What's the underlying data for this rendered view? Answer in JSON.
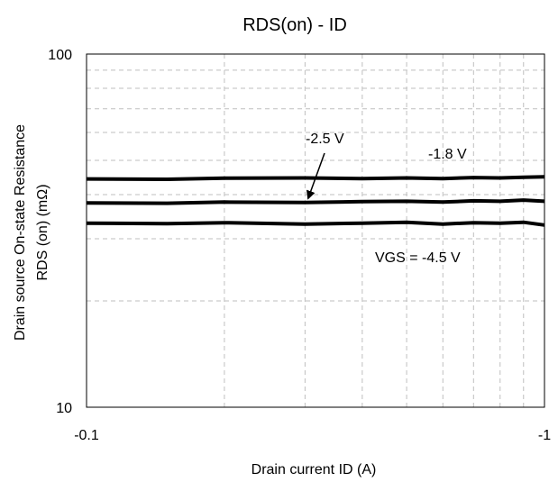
{
  "chart_data": {
    "type": "line",
    "title": "RDS(on) - ID",
    "xlabel": "Drain current ID (A)",
    "ylabel_lines": [
      "Drain source On-state Resistance",
      "RDS (on) (mΩ)"
    ],
    "x_scale": "log",
    "y_scale": "log",
    "x_tick_labels": [
      "-0.1",
      "-1"
    ],
    "y_tick_labels": [
      "10",
      "100"
    ],
    "xlim": [
      0.1,
      1
    ],
    "ylim": [
      10,
      100
    ],
    "grid": true,
    "series": [
      {
        "name": "-1.8 V",
        "x": [
          0.1,
          0.15,
          0.2,
          0.3,
          0.4,
          0.5,
          0.6,
          0.7,
          0.8,
          0.9,
          1.0
        ],
        "y": [
          44.3,
          44.2,
          44.5,
          44.6,
          44.4,
          44.6,
          44.4,
          44.7,
          44.6,
          44.8,
          44.9
        ]
      },
      {
        "name": "-2.5 V",
        "x": [
          0.1,
          0.15,
          0.2,
          0.3,
          0.4,
          0.5,
          0.6,
          0.7,
          0.8,
          0.9,
          1.0
        ],
        "y": [
          37.9,
          37.8,
          38.1,
          38.0,
          38.2,
          38.3,
          38.1,
          38.4,
          38.3,
          38.6,
          38.3
        ]
      },
      {
        "name": "VGS = -4.5 V",
        "x": [
          0.1,
          0.15,
          0.2,
          0.3,
          0.4,
          0.5,
          0.6,
          0.7,
          0.8,
          0.9,
          1.0
        ],
        "y": [
          33.2,
          33.1,
          33.3,
          33.0,
          33.2,
          33.4,
          33.0,
          33.3,
          33.2,
          33.4,
          32.8
        ]
      }
    ],
    "annotations": [
      {
        "text": "-2.5 V",
        "points_to_series": 1
      },
      {
        "text": "-1.8 V"
      },
      {
        "text": "VGS = -4.5 V"
      }
    ],
    "colors": {
      "line": "#000000",
      "grid": "#bfbfbf",
      "axis": "#000000"
    }
  }
}
